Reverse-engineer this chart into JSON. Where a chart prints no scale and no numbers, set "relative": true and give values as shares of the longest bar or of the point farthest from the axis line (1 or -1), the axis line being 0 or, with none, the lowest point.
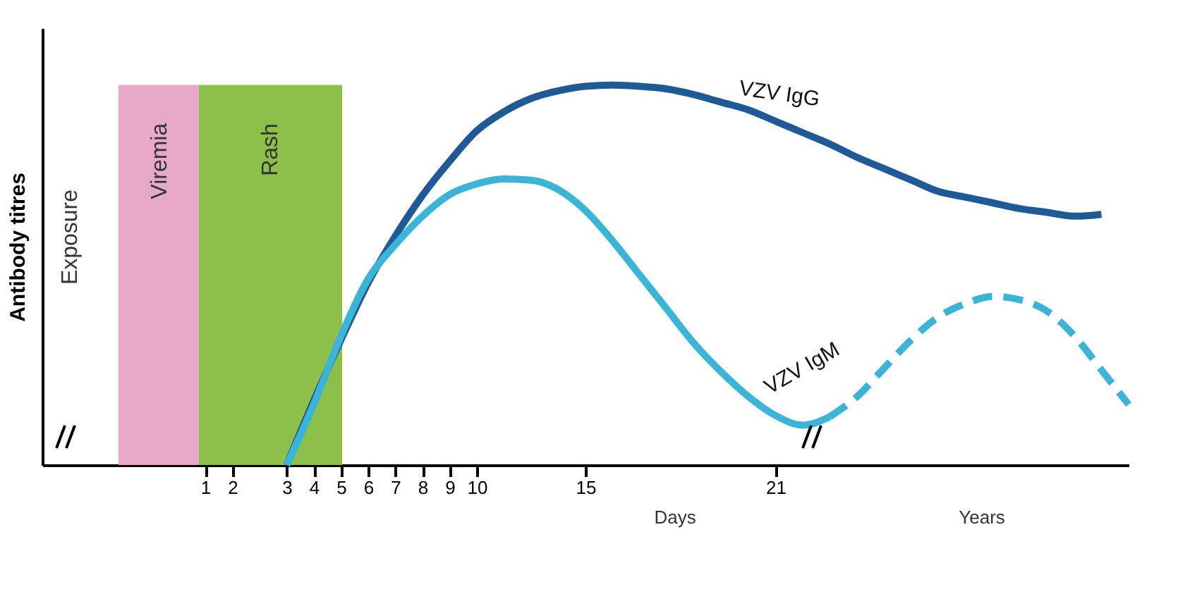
{
  "chart_data": {
    "type": "line",
    "relative": true,
    "ylabel": "Antibody titres",
    "categories": [
      null,
      null,
      null,
      null,
      null,
      null,
      "1",
      "2",
      null,
      "3",
      "4",
      "5",
      "6",
      "7",
      "8",
      "9",
      "10",
      null,
      null,
      null,
      "15",
      null,
      null,
      null,
      null,
      null,
      null,
      "21",
      null,
      null,
      null,
      null,
      null,
      null,
      null,
      null,
      null,
      null,
      null,
      null,
      null
    ],
    "annotations": [
      "Exposure",
      "Viremia",
      "Rash",
      "Days",
      "Years"
    ],
    "series": [
      {
        "name": "VZV IgG",
        "color": "#1f5a96",
        "line_style": "solid",
        "values": [
          null,
          null,
          null,
          null,
          null,
          null,
          null,
          null,
          null,
          0,
          0.17,
          0.33,
          0.48,
          0.603,
          0.71,
          0.8,
          0.88,
          0.93,
          0.965,
          0.985,
          0.997,
          1.0,
          0.997,
          0.99,
          0.975,
          0.955,
          0.935,
          0.905,
          0.875,
          0.845,
          0.81,
          0.78,
          0.75,
          0.72,
          0.705,
          0.69,
          0.675,
          0.665,
          0.655,
          0.66,
          null
        ]
      },
      {
        "name": "VZV IgM",
        "color": "#3cb4d8",
        "line_style": "solid",
        "values": [
          null,
          null,
          null,
          null,
          null,
          null,
          null,
          null,
          null,
          0,
          0.16,
          0.34,
          0.49,
          0.58,
          0.655,
          0.712,
          0.74,
          0.753,
          0.75,
          0.725,
          0.67,
          0.59,
          0.5,
          0.41,
          0.32,
          0.245,
          0.18,
          0.13,
          0.105,
          0.127,
          null,
          null,
          null,
          null,
          null,
          null,
          null,
          null,
          null,
          null,
          null
        ]
      },
      {
        "color": "#3cb4d8",
        "line_style": "dashed",
        "values": [
          null,
          null,
          null,
          null,
          null,
          null,
          null,
          null,
          null,
          null,
          null,
          null,
          null,
          null,
          null,
          null,
          null,
          null,
          null,
          null,
          null,
          null,
          null,
          null,
          null,
          null,
          null,
          null,
          null,
          0.127,
          0.18,
          0.255,
          0.33,
          0.39,
          0.425,
          0.444,
          0.435,
          0.405,
          0.34,
          0.25,
          0.159
        ]
      }
    ]
  }
}
